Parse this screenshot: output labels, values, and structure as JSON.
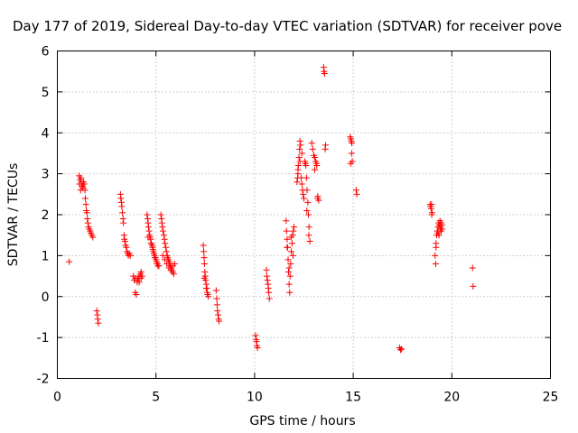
{
  "chart_data": {
    "type": "scatter",
    "title": "Day 177 of 2019, Sidereal Day-to-day VTEC variation (SDTVAR) for receiver pove",
    "xlabel": "GPS time / hours",
    "ylabel": "SDTVAR / TECUs",
    "xlim": [
      0,
      25
    ],
    "ylim": [
      -2,
      6
    ],
    "xticks": [
      0,
      5,
      10,
      15,
      20,
      25
    ],
    "yticks": [
      -2,
      -1,
      0,
      1,
      2,
      3,
      4,
      5,
      6
    ],
    "grid": true,
    "marker": "+",
    "color": "#ff0000",
    "series": [
      {
        "name": "SDTVAR",
        "x": [
          0.6,
          1.1,
          1.12,
          1.15,
          1.18,
          1.2,
          1.22,
          1.25,
          1.28,
          1.3,
          1.33,
          1.36,
          1.4,
          1.42,
          1.45,
          1.47,
          1.5,
          1.52,
          1.55,
          1.58,
          1.62,
          1.66,
          1.7,
          1.75,
          1.8,
          2.0,
          2.03,
          2.05,
          2.08,
          3.2,
          3.22,
          3.25,
          3.27,
          3.3,
          3.33,
          3.35,
          3.38,
          3.4,
          3.43,
          3.46,
          3.5,
          3.53,
          3.57,
          3.6,
          3.65,
          3.7,
          3.85,
          3.9,
          3.95,
          4.0,
          4.05,
          4.1,
          4.15,
          4.2,
          4.25,
          3.95,
          4.05,
          4.15,
          4.25,
          4.3,
          4.55,
          4.58,
          4.6,
          4.62,
          4.65,
          4.68,
          4.7,
          4.73,
          4.76,
          4.8,
          4.83,
          4.87,
          4.9,
          4.93,
          4.97,
          5.0,
          5.03,
          5.07,
          5.1,
          4.6,
          4.75,
          4.85,
          4.95,
          5.05,
          5.15,
          5.25,
          5.28,
          5.3,
          5.33,
          5.36,
          5.4,
          5.43,
          5.46,
          5.5,
          5.53,
          5.57,
          5.6,
          5.63,
          5.67,
          5.7,
          5.73,
          5.77,
          5.8,
          5.85,
          5.9,
          5.35,
          5.45,
          5.55,
          5.65,
          5.75,
          5.85,
          5.95,
          7.4,
          7.42,
          7.44,
          7.46,
          7.48,
          7.5,
          7.52,
          7.55,
          7.58,
          7.6,
          7.62,
          7.65,
          7.45,
          7.55,
          8.05,
          8.08,
          8.1,
          8.12,
          8.15,
          8.18,
          8.2,
          10.05,
          10.08,
          10.1,
          10.12,
          10.15,
          10.6,
          10.62,
          10.65,
          10.68,
          10.7,
          10.72,
          10.75,
          11.6,
          11.62,
          11.65,
          11.68,
          11.7,
          11.72,
          11.75,
          11.78,
          11.8,
          11.83,
          11.86,
          11.9,
          11.93,
          11.96,
          12.0,
          11.65,
          11.75,
          11.85,
          11.95,
          12.15,
          12.18,
          12.2,
          12.22,
          12.25,
          12.28,
          12.3,
          12.33,
          12.36,
          12.4,
          12.43,
          12.46,
          12.5,
          12.2,
          12.3,
          12.4,
          12.55,
          12.58,
          12.6,
          12.63,
          12.66,
          12.7,
          12.73,
          12.76,
          12.8,
          12.65,
          12.75,
          12.9,
          12.95,
          13.0,
          13.05,
          13.1,
          13.15,
          13.2,
          13.25,
          13.05,
          13.15,
          13.2,
          13.5,
          13.52,
          13.55,
          13.58,
          13.6,
          14.85,
          14.88,
          14.9,
          14.92,
          14.95,
          14.87,
          14.93,
          15.15,
          15.18,
          17.35,
          17.4,
          17.45,
          18.9,
          18.92,
          18.95,
          18.98,
          19.0,
          18.97,
          19.15,
          19.18,
          19.2,
          19.23,
          19.26,
          19.3,
          19.33,
          19.36,
          19.4,
          19.43,
          19.46,
          19.5,
          19.2,
          19.3,
          19.4,
          19.5,
          19.45,
          19.35,
          21.05,
          21.08
        ],
        "y": [
          0.85,
          2.95,
          2.75,
          2.85,
          2.6,
          2.9,
          2.8,
          2.7,
          2.7,
          2.65,
          2.8,
          2.75,
          2.6,
          2.4,
          2.25,
          2.1,
          2.05,
          1.9,
          1.8,
          1.7,
          1.65,
          1.6,
          1.55,
          1.5,
          1.45,
          -0.35,
          -0.45,
          -0.55,
          -0.65,
          2.5,
          2.4,
          2.3,
          2.2,
          2.05,
          1.9,
          1.8,
          1.5,
          1.4,
          1.35,
          1.25,
          1.2,
          1.1,
          1.05,
          1.0,
          1.05,
          1.0,
          0.5,
          0.4,
          0.1,
          0.05,
          0.35,
          0.45,
          0.5,
          0.55,
          0.6,
          0.45,
          0.4,
          0.35,
          0.45,
          0.5,
          2.0,
          1.9,
          1.8,
          1.7,
          1.6,
          1.5,
          1.45,
          1.4,
          1.3,
          1.25,
          1.2,
          1.1,
          1.05,
          1.0,
          0.95,
          0.9,
          0.85,
          0.8,
          0.75,
          1.45,
          1.3,
          1.15,
          0.95,
          0.8,
          0.75,
          2.0,
          1.9,
          1.8,
          1.7,
          1.6,
          1.5,
          1.4,
          1.3,
          1.2,
          1.1,
          1.0,
          0.95,
          0.9,
          0.85,
          0.8,
          0.75,
          0.7,
          0.65,
          0.6,
          0.55,
          1.0,
          0.9,
          0.8,
          0.7,
          0.65,
          0.75,
          0.8,
          1.25,
          1.1,
          0.95,
          0.8,
          0.6,
          0.5,
          0.4,
          0.3,
          0.2,
          0.1,
          0.05,
          0.0,
          0.45,
          0.2,
          0.15,
          -0.05,
          -0.2,
          -0.35,
          -0.45,
          -0.55,
          -0.6,
          -0.95,
          -1.05,
          -1.1,
          -1.2,
          -1.25,
          0.65,
          0.5,
          0.4,
          0.3,
          0.2,
          0.1,
          -0.05,
          1.85,
          1.6,
          1.4,
          1.2,
          0.9,
          0.6,
          0.3,
          0.1,
          0.5,
          0.8,
          1.1,
          1.3,
          1.5,
          1.6,
          1.7,
          1.2,
          0.7,
          1.45,
          1.0,
          2.8,
          2.9,
          3.0,
          3.2,
          3.4,
          3.6,
          3.8,
          3.7,
          2.9,
          2.75,
          2.6,
          2.5,
          2.4,
          3.1,
          3.3,
          3.5,
          3.3,
          3.25,
          3.2,
          2.9,
          2.6,
          2.3,
          2.0,
          1.7,
          1.35,
          2.1,
          1.5,
          3.75,
          3.6,
          3.45,
          3.4,
          3.3,
          3.25,
          2.45,
          2.35,
          3.1,
          3.2,
          2.4,
          5.6,
          5.5,
          5.45,
          3.6,
          3.7,
          3.9,
          3.85,
          3.8,
          3.5,
          3.3,
          3.25,
          3.75,
          2.6,
          2.5,
          -1.25,
          -1.3,
          -1.28,
          2.25,
          2.2,
          2.15,
          2.0,
          2.05,
          2.25,
          1.0,
          0.8,
          1.3,
          1.5,
          1.6,
          1.7,
          1.8,
          1.75,
          1.65,
          1.7,
          1.6,
          1.75,
          1.2,
          1.55,
          1.85,
          1.65,
          1.8,
          1.5,
          0.7,
          0.25
        ]
      }
    ]
  }
}
